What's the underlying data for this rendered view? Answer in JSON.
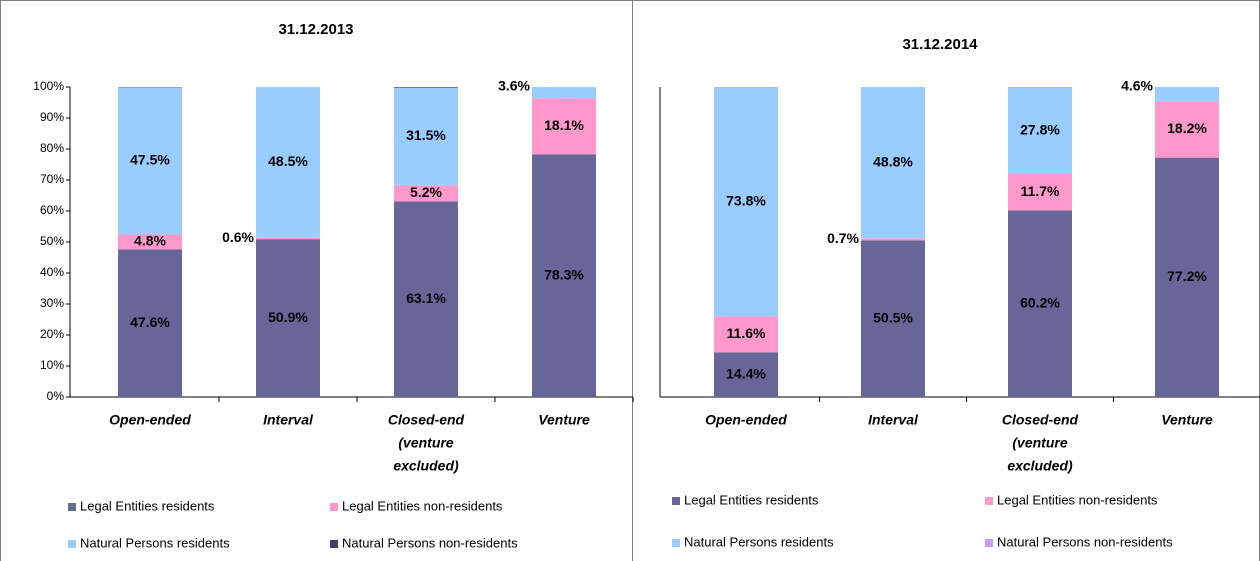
{
  "chart_data": [
    {
      "type": "bar",
      "stacked": true,
      "title": "31.12.2013",
      "categories": [
        [
          "Open-ended"
        ],
        [
          "Interval"
        ],
        [
          "Closed-end",
          "(venture",
          "excluded)"
        ],
        [
          "Venture"
        ]
      ],
      "ylim": [
        0,
        100
      ],
      "yticks": [
        {
          "value": 0,
          "label": "0%"
        },
        {
          "value": 10,
          "label": "10%"
        },
        {
          "value": 20,
          "label": "20%"
        },
        {
          "value": 30,
          "label": "30%"
        },
        {
          "value": 40,
          "label": "40%"
        },
        {
          "value": 50,
          "label": "50%"
        },
        {
          "value": 60,
          "label": "60%"
        },
        {
          "value": 70,
          "label": "70%"
        },
        {
          "value": 80,
          "label": "80%"
        },
        {
          "value": 90,
          "label": "90%"
        },
        {
          "value": 100,
          "label": "100%"
        }
      ],
      "series": [
        {
          "name": "Legal Entities residents",
          "color": "#666699",
          "label_color": "#ffffff",
          "values": [
            47.6,
            50.9,
            63.1,
            78.3
          ],
          "value_labels": [
            "47.6%",
            "50.9%",
            "63.1%",
            "78.3%"
          ]
        },
        {
          "name": "Legal Entities non-residents",
          "color": "#ff99cc",
          "label_color": "#000000",
          "values": [
            4.8,
            0.6,
            5.2,
            18.1
          ],
          "value_labels": [
            "4.8%",
            "0.6%",
            "5.2%",
            "18.1%"
          ]
        },
        {
          "name": "Natural Persons residents",
          "color": "#99ccff",
          "label_color": "#000000",
          "values": [
            47.5,
            48.5,
            31.5,
            3.6
          ],
          "value_labels": [
            "47.5%",
            "48.5%",
            "31.5%",
            "3.6%"
          ]
        },
        {
          "name": "Natural Persons non-residents",
          "color": "#4b3a6e",
          "values": [
            0.1,
            0,
            0.2,
            0
          ]
        }
      ]
    },
    {
      "type": "bar",
      "stacked": true,
      "title": "31.12.2014",
      "categories": [
        [
          "Open-ended"
        ],
        [
          "Interval"
        ],
        [
          "Closed-end",
          "(venture",
          "excluded)"
        ],
        [
          "Venture"
        ]
      ],
      "ylim": [
        0,
        100
      ],
      "series": [
        {
          "name": "Legal Entities residents",
          "color": "#666699",
          "label_color": "#ffffff",
          "values": [
            14.4,
            50.5,
            60.2,
            77.2
          ],
          "value_labels": [
            "14.4%",
            "50.5%",
            "60.2%",
            "77.2%"
          ]
        },
        {
          "name": "Legal Entities non-residents",
          "color": "#ff99cc",
          "label_color": "#660066",
          "values": [
            11.6,
            0.7,
            11.7,
            18.2
          ],
          "value_labels": [
            "11.6%",
            "0.7%",
            "11.7%",
            "18.2%"
          ]
        },
        {
          "name": "Natural Persons residents",
          "color": "#99ccff",
          "label_color": "#333399",
          "values": [
            73.8,
            48.8,
            27.8,
            4.6
          ],
          "value_labels": [
            "73.8%",
            "48.8%",
            "27.8%",
            "4.6%"
          ]
        },
        {
          "name": "Natural Persons non-residents",
          "color": "#cc99ff",
          "values": [
            0.2,
            0,
            0.3,
            0
          ]
        }
      ]
    }
  ]
}
